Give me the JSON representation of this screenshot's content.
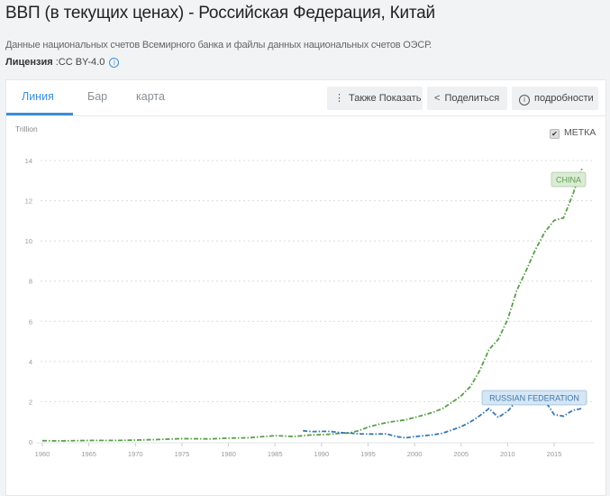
{
  "header": {
    "title": "ВВП (в текущих ценах) - Российская Федерация, Китай",
    "source": "Данные национальных счетов Всемирного банка и файлы данных национальных счетов ОЭСР.",
    "license_label": "Лицензия",
    "license_value": " :CC BY-4.0",
    "info_icon": "info-icon"
  },
  "tabs": [
    {
      "label": "Линия",
      "active": true
    },
    {
      "label": "Бар",
      "active": false
    },
    {
      "label": "карта",
      "active": false
    }
  ],
  "toolbar": {
    "also_show": {
      "icon": "vertical-dots-icon",
      "glyph": "⋮",
      "label": "Также Показать"
    },
    "share": {
      "icon": "share-icon",
      "glyph": "<",
      "label": "Поделиться"
    },
    "details": {
      "icon": "info-circle-icon",
      "glyph": "i",
      "label": "подробности"
    }
  },
  "chart_controls": {
    "unit_label": "Trillion",
    "label_toggle": {
      "label": "МЕТКА",
      "checked": true,
      "glyph": "✔"
    }
  },
  "colors": {
    "accent": "#3b8fd9",
    "china": "#5a9e4b",
    "russia": "#3a78b0",
    "china_label_bg": "#dcebd7",
    "russia_label_bg": "#d6e6f4"
  },
  "chart_data": {
    "type": "line",
    "title": "ВВП (в текущих ценах) - Российская Федерация, Китай",
    "xlabel": "",
    "ylabel": "Trillion",
    "xlim": [
      1960,
      2018
    ],
    "ylim": [
      0,
      14
    ],
    "x_ticks": [
      "1960",
      "1965",
      "1970",
      "1975",
      "1980",
      "1985",
      "1990",
      "1995",
      "2000",
      "2005",
      "2010",
      "2015"
    ],
    "y_ticks": [
      "0",
      "2",
      "4",
      "6",
      "8",
      "10",
      "12",
      "14"
    ],
    "grid": true,
    "legend": "inline labels",
    "series": [
      {
        "name": "CHINA",
        "x": [
          1960,
          1962,
          1965,
          1968,
          1970,
          1972,
          1975,
          1978,
          1980,
          1982,
          1985,
          1987,
          1989,
          1990,
          1991,
          1992,
          1993,
          1994,
          1995,
          1996,
          1997,
          1998,
          1999,
          2000,
          2001,
          2002,
          2003,
          2004,
          2005,
          2006,
          2007,
          2008,
          2009,
          2010,
          2011,
          2012,
          2013,
          2014,
          2015,
          2016,
          2017,
          2018
        ],
        "values": [
          0.06,
          0.05,
          0.07,
          0.07,
          0.09,
          0.11,
          0.16,
          0.15,
          0.19,
          0.2,
          0.31,
          0.27,
          0.35,
          0.36,
          0.38,
          0.43,
          0.44,
          0.56,
          0.73,
          0.86,
          0.96,
          1.03,
          1.09,
          1.21,
          1.34,
          1.47,
          1.66,
          1.96,
          2.29,
          2.75,
          3.55,
          4.59,
          5.1,
          6.09,
          7.55,
          8.53,
          9.57,
          10.44,
          11.02,
          11.14,
          12.31,
          13.61
        ]
      },
      {
        "name": "RUSSIAN FEDERATION",
        "x": [
          1988,
          1989,
          1990,
          1991,
          1992,
          1993,
          1994,
          1995,
          1996,
          1997,
          1998,
          1999,
          2000,
          2001,
          2002,
          2003,
          2004,
          2005,
          2006,
          2007,
          2008,
          2009,
          2010,
          2011,
          2012,
          2013,
          2014,
          2015,
          2016,
          2017,
          2018
        ],
        "values": [
          0.55,
          0.51,
          0.52,
          0.52,
          0.46,
          0.44,
          0.4,
          0.39,
          0.39,
          0.4,
          0.27,
          0.2,
          0.26,
          0.31,
          0.35,
          0.43,
          0.59,
          0.76,
          0.99,
          1.3,
          1.66,
          1.22,
          1.52,
          2.05,
          2.21,
          2.29,
          2.06,
          1.36,
          1.28,
          1.57,
          1.66
        ]
      }
    ]
  }
}
